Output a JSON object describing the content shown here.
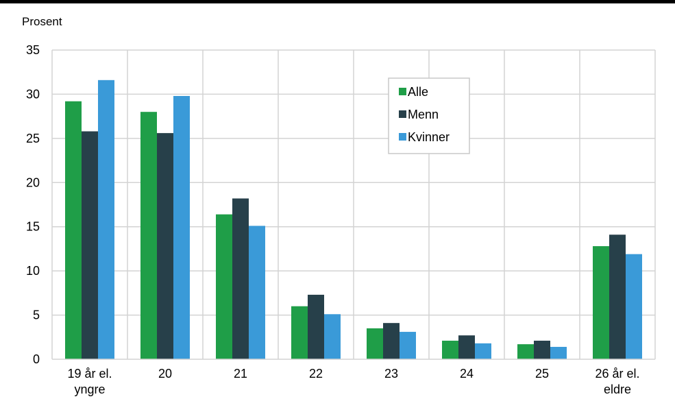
{
  "chart_data": {
    "type": "bar",
    "ylabel": "Prosent",
    "ylim": [
      0,
      35
    ],
    "yticks": [
      0,
      5,
      10,
      15,
      20,
      25,
      30,
      35
    ],
    "grid": true,
    "legend_position": "top-center",
    "categories": [
      [
        "19 år el.",
        "yngre"
      ],
      [
        "20"
      ],
      [
        "21"
      ],
      [
        "22"
      ],
      [
        "23"
      ],
      [
        "24"
      ],
      [
        "25"
      ],
      [
        "26 år el.",
        "eldre"
      ]
    ],
    "series": [
      {
        "name": "Alle",
        "color": "#1f9e48",
        "values": [
          29.2,
          28.0,
          16.4,
          6.0,
          3.5,
          2.1,
          1.7,
          12.8
        ]
      },
      {
        "name": "Menn",
        "color": "#27404a",
        "values": [
          25.8,
          25.6,
          18.2,
          7.3,
          4.1,
          2.7,
          2.1,
          14.1
        ]
      },
      {
        "name": "Kvinner",
        "color": "#3a9ad8",
        "values": [
          31.6,
          29.8,
          15.1,
          5.1,
          3.1,
          1.8,
          1.4,
          11.9
        ]
      }
    ]
  }
}
